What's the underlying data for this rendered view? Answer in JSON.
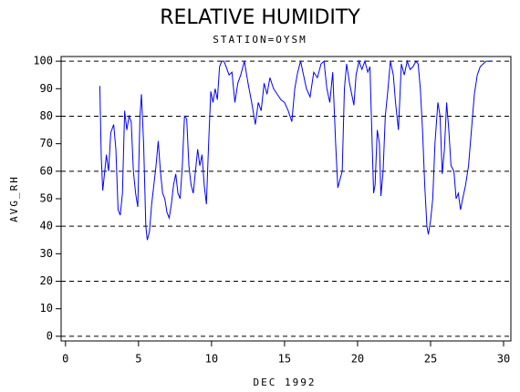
{
  "chart_data": {
    "type": "line",
    "title": "RELATIVE HUMIDITY",
    "subtitle": "STATION=OYSM",
    "xlabel": "DEC 1992",
    "ylabel": "AVG_RH",
    "color": "#0000ff",
    "xlim": [
      -0.3,
      30.5
    ],
    "ylim": [
      -1.7,
      101.7
    ],
    "xticks": [
      0,
      5,
      10,
      15,
      20,
      25,
      30
    ],
    "yticks": [
      0,
      10,
      20,
      30,
      40,
      50,
      60,
      70,
      80,
      90,
      100
    ],
    "ygrid": [
      0,
      20,
      40,
      60,
      80,
      100
    ],
    "x": [
      2.35,
      2.45,
      2.55,
      2.65,
      2.8,
      2.95,
      3.1,
      3.3,
      3.45,
      3.6,
      3.75,
      3.9,
      4.05,
      4.2,
      4.35,
      4.5,
      4.65,
      4.8,
      4.95,
      5.1,
      5.2,
      5.35,
      5.5,
      5.6,
      5.75,
      5.9,
      6.05,
      6.2,
      6.35,
      6.5,
      6.65,
      6.8,
      6.95,
      7.1,
      7.25,
      7.4,
      7.55,
      7.7,
      7.85,
      8.0,
      8.15,
      8.3,
      8.45,
      8.6,
      8.75,
      8.9,
      9.05,
      9.2,
      9.35,
      9.5,
      9.65,
      9.8,
      9.95,
      10.1,
      10.25,
      10.4,
      10.55,
      10.7,
      10.85,
      11.0,
      11.2,
      11.4,
      11.6,
      11.8,
      12.0,
      12.25,
      12.5,
      12.75,
      13.0,
      13.2,
      13.4,
      13.6,
      13.8,
      14.0,
      14.25,
      14.5,
      14.75,
      15.0,
      15.25,
      15.5,
      15.7,
      15.9,
      16.1,
      16.3,
      16.5,
      16.75,
      17.0,
      17.25,
      17.5,
      17.7,
      17.9,
      18.1,
      18.3,
      18.5,
      18.65,
      18.8,
      18.95,
      19.1,
      19.25,
      19.45,
      19.6,
      19.75,
      19.9,
      20.1,
      20.3,
      20.5,
      20.7,
      20.85,
      21.0,
      21.1,
      21.2,
      21.35,
      21.5,
      21.6,
      21.75,
      21.9,
      22.05,
      22.25,
      22.45,
      22.6,
      22.8,
      23.0,
      23.2,
      23.4,
      23.6,
      23.8,
      24.0,
      24.15,
      24.3,
      24.45,
      24.6,
      24.75,
      24.85,
      25.0,
      25.15,
      25.3,
      25.5,
      25.65,
      25.8,
      25.95,
      26.1,
      26.25,
      26.4,
      26.6,
      26.75,
      26.9,
      27.05,
      27.2,
      27.4,
      27.6,
      27.8,
      28.0,
      28.2,
      28.4,
      28.6,
      28.8,
      29.0,
      29.25
    ],
    "values": [
      91,
      65,
      53,
      58,
      66,
      60,
      74,
      77,
      68,
      46,
      44,
      52,
      82,
      75,
      80,
      78,
      60,
      52,
      47,
      80,
      88,
      70,
      40,
      35,
      38,
      48,
      55,
      62,
      71,
      60,
      52,
      50,
      45,
      43,
      48,
      55,
      59,
      52,
      50,
      62,
      80,
      79,
      62,
      55,
      52,
      60,
      68,
      62,
      66,
      55,
      48,
      70,
      89,
      85,
      90,
      86,
      98,
      100,
      100,
      98,
      95,
      96,
      85,
      92,
      95,
      100,
      92,
      85,
      77,
      85,
      82,
      92,
      88,
      94,
      90,
      88,
      86,
      85,
      82,
      78,
      90,
      96,
      100,
      95,
      90,
      87,
      96,
      94,
      99,
      100,
      90,
      85,
      96,
      70,
      54,
      57,
      60,
      90,
      99,
      92,
      88,
      84,
      95,
      100,
      97,
      100,
      96,
      98,
      70,
      52,
      55,
      75,
      70,
      51,
      60,
      80,
      88,
      100,
      95,
      85,
      75,
      99,
      95,
      100,
      97,
      98,
      100,
      99,
      90,
      75,
      55,
      40,
      37,
      42,
      50,
      70,
      85,
      80,
      59,
      68,
      85,
      75,
      62,
      60,
      50,
      52,
      46,
      50,
      55,
      62,
      75,
      88,
      95,
      98,
      99,
      100,
      100,
      100
    ]
  }
}
